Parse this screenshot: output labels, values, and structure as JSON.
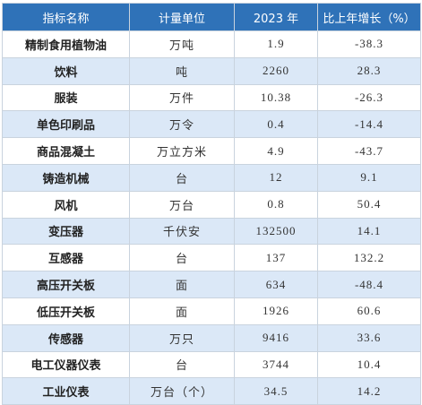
{
  "table": {
    "header": [
      "指标名称",
      "计量单位",
      "2023 年",
      "比上年增长（%）"
    ],
    "rows": [
      [
        "精制食用植物油",
        "万吨",
        "1.9",
        "-38.3"
      ],
      [
        "饮料",
        "吨",
        "2260",
        "28.3"
      ],
      [
        "服装",
        "万件",
        "10.38",
        "-26.3"
      ],
      [
        "单色印刷品",
        "万令",
        "0.4",
        "-14.4"
      ],
      [
        "商品混凝土",
        "万立方米",
        "4.9",
        "-43.7"
      ],
      [
        "铸造机械",
        "台",
        "12",
        "9.1"
      ],
      [
        "风机",
        "万台",
        "0.8",
        "50.4"
      ],
      [
        "变压器",
        "千伏安",
        "132500",
        "14.1"
      ],
      [
        "互感器",
        "台",
        "137",
        "132.2"
      ],
      [
        "高压开关板",
        "面",
        "634",
        "-48.4"
      ],
      [
        "低压开关板",
        "面",
        "1926",
        "60.6"
      ],
      [
        "传感器",
        "万只",
        "9416",
        "33.6"
      ],
      [
        "电工仪器仪表",
        "台",
        "3744",
        "10.4"
      ],
      [
        "工业仪表",
        "万台（个）",
        "34.5",
        "14.2"
      ]
    ]
  }
}
